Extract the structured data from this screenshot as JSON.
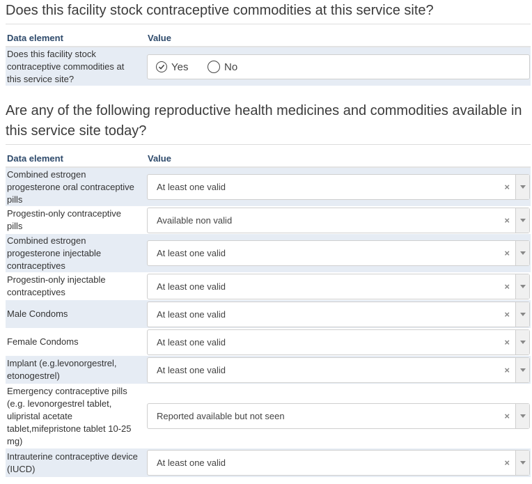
{
  "section1": {
    "title": "Does this facility stock contraceptive commodities at this service site?",
    "header": {
      "data_element": "Data element",
      "value": "Value"
    },
    "question": {
      "label": "Does this facility stock contraceptive commodities at this service site?",
      "options": [
        {
          "label": "Yes",
          "selected": true
        },
        {
          "label": "No",
          "selected": false
        }
      ]
    }
  },
  "section2": {
    "title": "Are any of the following reproductive health medicines and commodities available in this service site today?",
    "header": {
      "data_element": "Data element",
      "value": "Value"
    },
    "rows": [
      {
        "label": "Combined estrogen progesterone oral contraceptive pills",
        "value": "At least one valid"
      },
      {
        "label": "Progestin-only contraceptive pills",
        "value": "Available non valid"
      },
      {
        "label": "Combined estrogen progesterone injectable contraceptives",
        "value": "At least one valid"
      },
      {
        "label": "Progestin-only injectable contraceptives",
        "value": "At least one valid"
      },
      {
        "label": "Male Condoms",
        "value": "At least one valid"
      },
      {
        "label": "Female Condoms",
        "value": "At least one valid"
      },
      {
        "label": "Implant (e.g.levonorgestrel, etonogestrel)",
        "value": "At least one valid"
      },
      {
        "label": "Emergency contraceptive pills (e.g. levonorgestrel tablet, ulipristal acetate tablet,mifepristone tablet 10-25 mg)",
        "value": "Reported available but not seen"
      },
      {
        "label": "Intrauterine contraceptive device (IUCD)",
        "value": "At least one valid"
      }
    ]
  },
  "colors": {
    "row_alt": "#e6ecf4",
    "header_text": "#2e4a6b"
  },
  "icons": {
    "clear": "clear-x-icon",
    "dropdown": "chevron-down-icon",
    "radio_checked": "check-circle-icon",
    "radio_empty": "radio-empty-icon"
  }
}
